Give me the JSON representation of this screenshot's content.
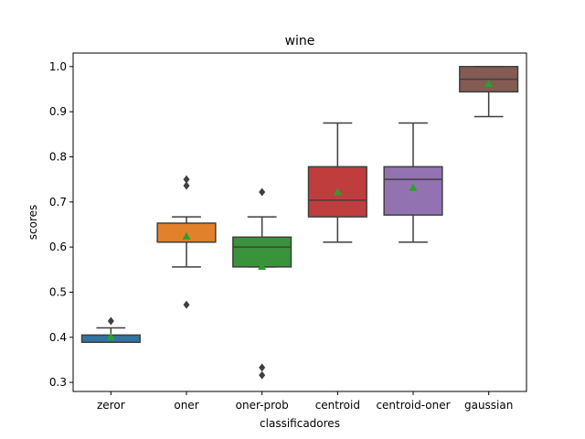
{
  "chart_data": {
    "type": "box",
    "title": "wine",
    "xlabel": "classificadores",
    "ylabel": "scores",
    "ylim": [
      0.28,
      1.03
    ],
    "yticks": [
      0.3,
      0.4,
      0.5,
      0.6,
      0.7,
      0.8,
      0.9,
      1.0
    ],
    "ytick_labels": [
      "0.3",
      "0.4",
      "0.5",
      "0.6",
      "0.7",
      "0.8",
      "0.9",
      "1.0"
    ],
    "categories": [
      "zeror",
      "oner",
      "oner-prob",
      "centroid",
      "centroid-oner",
      "gaussian"
    ],
    "boxes": [
      {
        "name": "zeror",
        "color": "#3274a1",
        "whislo": 0.389,
        "q1": 0.389,
        "med": 0.389,
        "q3": 0.405,
        "whishi": 0.421,
        "mean": 0.401,
        "fliers": [
          0.436
        ]
      },
      {
        "name": "oner",
        "color": "#e1812c",
        "whislo": 0.556,
        "q1": 0.611,
        "med": 0.611,
        "q3": 0.653,
        "whishi": 0.667,
        "mean": 0.624,
        "fliers": [
          0.75,
          0.736,
          0.472
        ]
      },
      {
        "name": "oner-prob",
        "color": "#3a923a",
        "whislo": 0.556,
        "q1": 0.556,
        "med": 0.6,
        "q3": 0.622,
        "whishi": 0.667,
        "mean": 0.557,
        "fliers": [
          0.722,
          0.333,
          0.316
        ]
      },
      {
        "name": "centroid",
        "color": "#c03d3e",
        "whislo": 0.611,
        "q1": 0.667,
        "med": 0.704,
        "q3": 0.778,
        "whishi": 0.875,
        "mean": 0.722,
        "fliers": []
      },
      {
        "name": "centroid-oner",
        "color": "#9372b2",
        "whislo": 0.611,
        "q1": 0.671,
        "med": 0.75,
        "q3": 0.778,
        "whishi": 0.875,
        "mean": 0.732,
        "fliers": []
      },
      {
        "name": "gaussian",
        "color": "#845b53",
        "whislo": 0.889,
        "q1": 0.944,
        "med": 0.972,
        "q3": 1.0,
        "whishi": 1.0,
        "mean": 0.962,
        "fliers": []
      }
    ],
    "mean_marker_color": "#2ca02c",
    "grid": false,
    "legend": "none"
  }
}
